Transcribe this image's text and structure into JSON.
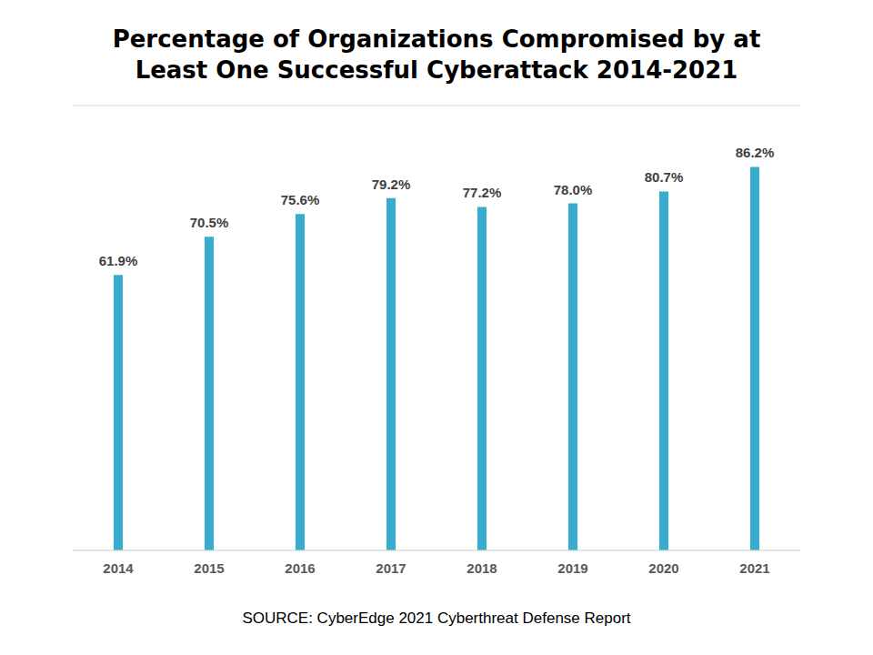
{
  "chart_data": {
    "type": "bar",
    "title": "Percentage of Organizations Compromised by at\nLeast One Successful Cyberattack 2014-2021",
    "annotations": [
      "SOURCE: CyberEdge 2021 Cyberthreat Defense Report"
    ],
    "categories": [
      "2014",
      "2015",
      "2016",
      "2017",
      "2018",
      "2019",
      "2020",
      "2021"
    ],
    "values": [
      61.9,
      70.5,
      75.6,
      79.2,
      77.2,
      78.0,
      80.7,
      86.2
    ],
    "value_labels": [
      "61.9%",
      "70.5%",
      "75.6%",
      "79.2%",
      "77.2%",
      "78.0%",
      "80.7%",
      "86.2%"
    ],
    "color": "#36acce",
    "ylim": [
      0,
      100
    ],
    "yticks": [
      0,
      10,
      20,
      30,
      40,
      50,
      60,
      70,
      80,
      90,
      100
    ],
    "grid": true,
    "data_labels": true,
    "tick_labels": "x"
  }
}
